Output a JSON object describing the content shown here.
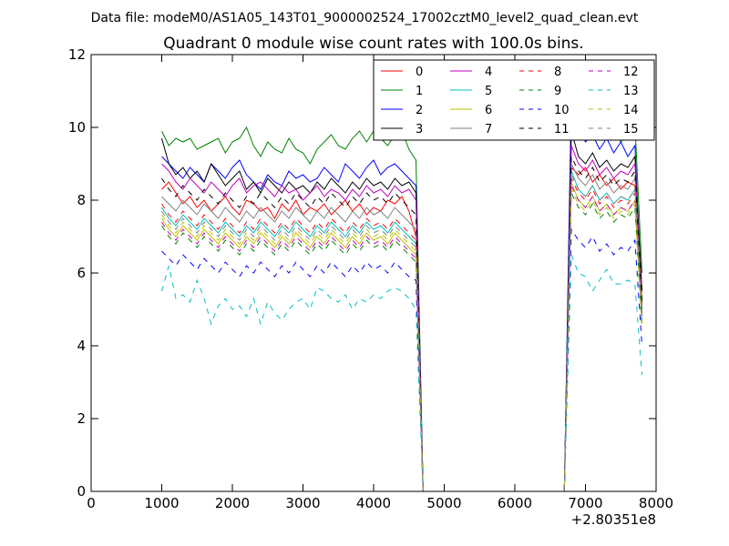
{
  "suptitle": "Data file: modeM0/AS1A05_143T01_9000002524_17002cztM0_level2_quad_clean.evt",
  "chart_data": {
    "type": "line",
    "title": "Quadrant 0 module wise count rates with 100.0s bins.",
    "xlabel": "",
    "ylabel": "",
    "x_offset_label": "+2.80351e8",
    "xlim": [
      0,
      8000
    ],
    "ylim": [
      0,
      12
    ],
    "xticks": [
      0,
      1000,
      2000,
      3000,
      4000,
      5000,
      6000,
      7000,
      8000
    ],
    "yticks": [
      0,
      2,
      4,
      6,
      8,
      10,
      12
    ],
    "grid": false,
    "legend_position": "top-right",
    "legend_columns": 4,
    "x": [
      1000,
      1100,
      1200,
      1300,
      1400,
      1500,
      1600,
      1700,
      1800,
      1900,
      2000,
      2100,
      2200,
      2300,
      2400,
      2500,
      2600,
      2700,
      2800,
      2900,
      3000,
      3100,
      3200,
      3300,
      3400,
      3500,
      3600,
      3700,
      3800,
      3900,
      4000,
      4100,
      4200,
      4300,
      4400,
      4500,
      4600,
      4700,
      4800,
      4900,
      5000,
      5100,
      5200,
      5300,
      5400,
      5500,
      5600,
      5700,
      5800,
      5900,
      6000,
      6100,
      6200,
      6300,
      6400,
      6500,
      6600,
      6700,
      6800,
      6900,
      7000,
      7100,
      7200,
      7300,
      7400,
      7500,
      7600,
      7700,
      7800
    ],
    "series": [
      {
        "name": "0",
        "color": "#ff0000",
        "dashed": false,
        "values": [
          8.3,
          8.5,
          8.2,
          7.9,
          8.1,
          7.8,
          8.0,
          7.7,
          7.9,
          8.1,
          7.8,
          7.6,
          8.0,
          7.9,
          7.7,
          7.8,
          7.5,
          7.9,
          7.7,
          8.0,
          7.6,
          7.8,
          7.7,
          7.9,
          7.6,
          7.8,
          8.0,
          7.7,
          7.9,
          7.6,
          7.8,
          7.7,
          8.0,
          7.9,
          8.1,
          7.7,
          7.0,
          0,
          0,
          0,
          0,
          0,
          0,
          0,
          0,
          0,
          0,
          0,
          0,
          0,
          0,
          0,
          0,
          0,
          0,
          0,
          0,
          0,
          8.9,
          8.7,
          8.9,
          8.5,
          8.7,
          8.4,
          8.6,
          8.3,
          8.5,
          8.4,
          5.5
        ]
      },
      {
        "name": "1",
        "color": "#008000",
        "dashed": false,
        "values": [
          9.9,
          9.5,
          9.7,
          9.6,
          9.7,
          9.4,
          9.5,
          9.6,
          9.7,
          9.3,
          9.6,
          9.7,
          10.0,
          9.5,
          9.2,
          9.6,
          9.4,
          9.3,
          9.7,
          9.4,
          9.3,
          9.0,
          9.4,
          9.6,
          9.8,
          9.5,
          9.4,
          9.7,
          9.9,
          9.6,
          9.9,
          9.7,
          9.5,
          9.8,
          9.9,
          9.4,
          9.1,
          0,
          0,
          0,
          0,
          0,
          0,
          0,
          0,
          0,
          0,
          0,
          0,
          0,
          0,
          0,
          0,
          0,
          0,
          0,
          0,
          0,
          10.3,
          10.0,
          10.2,
          9.8,
          10.1,
          9.7,
          9.9,
          9.6,
          9.8,
          10.1,
          6.0
        ]
      },
      {
        "name": "2",
        "color": "#0000ff",
        "dashed": false,
        "values": [
          9.2,
          9.0,
          8.8,
          8.6,
          8.9,
          8.7,
          8.5,
          9.0,
          8.8,
          8.6,
          8.9,
          9.1,
          8.7,
          8.5,
          8.3,
          8.7,
          8.5,
          8.4,
          8.8,
          8.6,
          8.7,
          8.5,
          8.6,
          8.9,
          8.7,
          8.5,
          9.0,
          8.8,
          8.6,
          8.9,
          9.1,
          8.7,
          8.9,
          9.0,
          8.8,
          8.6,
          8.4,
          0,
          0,
          0,
          0,
          0,
          0,
          0,
          0,
          0,
          0,
          0,
          0,
          0,
          0,
          0,
          0,
          0,
          0,
          0,
          0,
          0,
          10.9,
          10.0,
          9.6,
          9.8,
          9.4,
          9.7,
          9.3,
          9.6,
          9.2,
          9.5,
          5.0
        ]
      },
      {
        "name": "3",
        "color": "#000000",
        "dashed": false,
        "values": [
          9.7,
          9.0,
          8.7,
          8.9,
          8.6,
          8.8,
          8.5,
          9.0,
          8.7,
          8.4,
          8.6,
          8.8,
          8.3,
          8.5,
          8.2,
          8.6,
          8.4,
          8.2,
          8.5,
          8.3,
          8.4,
          8.2,
          8.5,
          8.3,
          8.6,
          8.4,
          8.2,
          8.5,
          8.3,
          8.6,
          8.4,
          8.5,
          8.3,
          8.6,
          8.4,
          8.5,
          8.2,
          0,
          0,
          0,
          0,
          0,
          0,
          0,
          0,
          0,
          0,
          0,
          0,
          0,
          0,
          0,
          0,
          0,
          0,
          0,
          0,
          0,
          9.9,
          9.2,
          9.0,
          9.3,
          8.9,
          9.1,
          8.8,
          9.0,
          8.9,
          9.2,
          5.5
        ]
      },
      {
        "name": "4",
        "color": "#bf00bf",
        "dashed": false,
        "values": [
          9.0,
          8.8,
          8.5,
          8.3,
          8.6,
          8.4,
          8.2,
          8.5,
          8.3,
          8.1,
          8.4,
          8.6,
          8.2,
          8.4,
          8.5,
          8.3,
          8.1,
          8.4,
          8.2,
          8.3,
          8.0,
          8.2,
          8.4,
          8.1,
          8.3,
          8.2,
          8.0,
          8.3,
          8.1,
          8.4,
          8.2,
          8.3,
          8.1,
          8.4,
          8.2,
          8.3,
          8.0,
          0,
          0,
          0,
          0,
          0,
          0,
          0,
          0,
          0,
          0,
          0,
          0,
          0,
          0,
          0,
          0,
          0,
          0,
          0,
          0,
          0,
          9.5,
          9.0,
          8.8,
          9.1,
          8.7,
          8.9,
          8.6,
          8.8,
          8.7,
          9.0,
          5.2
        ]
      },
      {
        "name": "5",
        "color": "#00bfbf",
        "dashed": false,
        "values": [
          7.8,
          7.5,
          7.3,
          7.6,
          7.4,
          7.2,
          7.5,
          7.3,
          7.1,
          7.4,
          7.2,
          7.0,
          7.3,
          7.1,
          7.4,
          7.2,
          7.0,
          7.3,
          7.1,
          7.4,
          7.2,
          7.0,
          7.3,
          7.1,
          7.4,
          7.2,
          7.0,
          7.3,
          7.1,
          7.4,
          7.2,
          7.3,
          7.1,
          7.4,
          7.2,
          7.0,
          6.8,
          0,
          0,
          0,
          0,
          0,
          0,
          0,
          0,
          0,
          0,
          0,
          0,
          0,
          0,
          0,
          0,
          0,
          0,
          0,
          0,
          0,
          8.8,
          8.3,
          8.1,
          8.4,
          8.0,
          8.2,
          7.9,
          8.1,
          8.0,
          8.3,
          4.8
        ]
      },
      {
        "name": "6",
        "color": "#bfbf00",
        "dashed": false,
        "values": [
          7.5,
          7.2,
          7.0,
          7.3,
          7.1,
          6.9,
          7.2,
          7.0,
          6.8,
          7.1,
          6.9,
          6.7,
          7.0,
          6.8,
          7.1,
          6.9,
          6.7,
          7.0,
          6.8,
          7.1,
          6.9,
          6.7,
          7.0,
          6.8,
          7.1,
          6.9,
          6.7,
          7.0,
          6.8,
          7.1,
          6.9,
          7.0,
          6.8,
          7.1,
          6.9,
          6.7,
          6.5,
          0,
          0,
          0,
          0,
          0,
          0,
          0,
          0,
          0,
          0,
          0,
          0,
          0,
          0,
          0,
          0,
          0,
          0,
          0,
          0,
          0,
          8.5,
          8.0,
          7.8,
          8.1,
          7.7,
          7.9,
          7.6,
          7.8,
          7.7,
          8.0,
          4.6
        ]
      },
      {
        "name": "7",
        "color": "#808080",
        "dashed": false,
        "values": [
          8.1,
          7.9,
          7.7,
          8.0,
          7.8,
          7.6,
          7.9,
          7.7,
          7.5,
          7.8,
          7.6,
          7.4,
          7.7,
          7.5,
          7.8,
          7.6,
          7.4,
          7.7,
          7.5,
          7.8,
          7.6,
          7.4,
          7.7,
          7.5,
          7.8,
          7.6,
          7.4,
          7.7,
          7.5,
          7.8,
          7.6,
          7.7,
          7.5,
          7.8,
          7.6,
          7.4,
          7.2,
          0,
          0,
          0,
          0,
          0,
          0,
          0,
          0,
          0,
          0,
          0,
          0,
          0,
          0,
          0,
          0,
          0,
          0,
          0,
          0,
          0,
          9.0,
          8.6,
          8.4,
          8.7,
          8.3,
          8.5,
          8.2,
          8.4,
          8.3,
          8.6,
          5.0
        ]
      },
      {
        "name": "8",
        "color": "#ff0000",
        "dashed": true,
        "values": [
          7.9,
          7.6,
          7.4,
          7.7,
          7.5,
          7.3,
          7.6,
          7.4,
          7.2,
          7.5,
          7.3,
          7.1,
          7.4,
          7.2,
          7.5,
          7.3,
          7.1,
          7.4,
          7.2,
          7.5,
          7.3,
          7.1,
          7.4,
          7.2,
          7.5,
          7.3,
          7.1,
          7.4,
          7.2,
          7.5,
          7.3,
          7.4,
          7.2,
          7.5,
          7.3,
          7.1,
          6.9,
          0,
          0,
          0,
          0,
          0,
          0,
          0,
          0,
          0,
          0,
          0,
          0,
          0,
          0,
          0,
          0,
          0,
          0,
          0,
          0,
          0,
          8.6,
          8.2,
          8.0,
          8.3,
          7.9,
          8.1,
          7.8,
          8.0,
          7.9,
          8.2,
          4.9
        ]
      },
      {
        "name": "9",
        "color": "#008000",
        "dashed": true,
        "values": [
          7.3,
          7.0,
          6.8,
          7.1,
          6.9,
          6.7,
          7.0,
          6.8,
          6.6,
          6.9,
          6.7,
          6.5,
          6.8,
          6.6,
          6.9,
          6.7,
          6.5,
          6.8,
          6.6,
          6.9,
          6.7,
          6.5,
          6.8,
          6.6,
          6.9,
          6.7,
          6.5,
          6.8,
          6.6,
          6.9,
          6.7,
          6.8,
          6.6,
          6.9,
          6.7,
          6.5,
          6.3,
          0,
          0,
          0,
          0,
          0,
          0,
          0,
          0,
          0,
          0,
          0,
          0,
          0,
          0,
          0,
          0,
          0,
          0,
          0,
          0,
          0,
          8.2,
          7.8,
          7.6,
          7.9,
          7.5,
          7.7,
          7.4,
          7.6,
          7.5,
          7.8,
          4.5
        ]
      },
      {
        "name": "10",
        "color": "#0000ff",
        "dashed": true,
        "values": [
          6.6,
          6.4,
          6.2,
          6.5,
          6.3,
          6.1,
          6.4,
          6.2,
          6.0,
          6.3,
          6.1,
          5.9,
          6.2,
          6.0,
          6.3,
          6.1,
          5.9,
          6.2,
          6.0,
          6.3,
          6.1,
          5.9,
          6.2,
          6.0,
          6.3,
          6.1,
          5.9,
          6.2,
          6.0,
          6.3,
          6.1,
          6.2,
          6.0,
          6.3,
          6.1,
          5.9,
          5.8,
          0,
          0,
          0,
          0,
          0,
          0,
          0,
          0,
          0,
          0,
          0,
          0,
          0,
          0,
          0,
          0,
          0,
          0,
          0,
          0,
          0,
          7.2,
          6.9,
          6.7,
          7.0,
          6.6,
          6.8,
          6.5,
          6.7,
          6.6,
          6.9,
          4.0
        ]
      },
      {
        "name": "11",
        "color": "#000000",
        "dashed": true,
        "values": [
          8.6,
          8.3,
          8.1,
          8.4,
          8.2,
          8.0,
          8.3,
          8.1,
          7.9,
          8.2,
          8.0,
          7.8,
          8.1,
          7.9,
          8.2,
          8.0,
          7.8,
          8.1,
          7.9,
          8.2,
          8.0,
          7.8,
          8.1,
          7.9,
          8.2,
          8.0,
          7.8,
          8.1,
          7.9,
          8.2,
          8.0,
          8.1,
          7.9,
          8.2,
          8.0,
          7.8,
          7.6,
          0,
          0,
          0,
          0,
          0,
          0,
          0,
          0,
          0,
          0,
          0,
          0,
          0,
          0,
          0,
          0,
          0,
          0,
          0,
          0,
          0,
          9.2,
          8.8,
          8.6,
          8.9,
          8.5,
          8.7,
          8.4,
          8.6,
          8.5,
          8.8,
          5.2
        ]
      },
      {
        "name": "12",
        "color": "#bf00bf",
        "dashed": true,
        "values": [
          7.4,
          7.1,
          6.9,
          7.2,
          7.0,
          6.8,
          7.1,
          6.9,
          6.7,
          7.0,
          6.8,
          6.6,
          6.9,
          6.7,
          7.0,
          6.8,
          6.6,
          6.9,
          6.7,
          7.0,
          6.8,
          6.6,
          6.9,
          6.7,
          7.0,
          6.8,
          6.6,
          6.9,
          6.7,
          7.0,
          6.8,
          6.9,
          6.7,
          7.0,
          6.8,
          6.6,
          6.4,
          0,
          0,
          0,
          0,
          0,
          0,
          0,
          0,
          0,
          0,
          0,
          0,
          0,
          0,
          0,
          0,
          0,
          0,
          0,
          0,
          0,
          8.4,
          8.0,
          7.8,
          8.1,
          7.7,
          7.9,
          7.6,
          7.8,
          7.7,
          8.0,
          4.7
        ]
      },
      {
        "name": "13",
        "color": "#00bfbf",
        "dashed": true,
        "values": [
          5.5,
          6.2,
          5.3,
          5.4,
          5.2,
          5.8,
          5.3,
          4.6,
          5.1,
          5.3,
          5.0,
          5.1,
          4.8,
          5.3,
          4.6,
          5.2,
          4.9,
          4.7,
          5.0,
          5.2,
          5.3,
          5.0,
          5.6,
          5.5,
          5.3,
          5.2,
          5.4,
          5.0,
          5.3,
          5.2,
          5.4,
          5.3,
          5.5,
          5.6,
          5.5,
          5.3,
          5.0,
          0,
          0,
          0,
          0,
          0,
          0,
          0,
          0,
          0,
          0,
          0,
          0,
          0,
          0,
          0,
          0,
          0,
          0,
          0,
          0,
          0,
          6.5,
          6.0,
          5.9,
          5.5,
          5.8,
          6.1,
          5.7,
          5.7,
          5.8,
          5.7,
          3.2
        ]
      },
      {
        "name": "14",
        "color": "#bfbf00",
        "dashed": true,
        "values": [
          7.6,
          7.3,
          7.1,
          7.4,
          7.2,
          7.0,
          7.3,
          7.1,
          6.9,
          7.2,
          7.0,
          6.8,
          7.1,
          6.9,
          7.2,
          7.0,
          6.8,
          7.1,
          6.9,
          7.2,
          7.0,
          6.8,
          7.1,
          6.9,
          7.2,
          7.0,
          6.8,
          7.1,
          6.9,
          7.2,
          7.0,
          7.1,
          6.9,
          7.2,
          7.0,
          6.8,
          6.6,
          0,
          0,
          0,
          0,
          0,
          0,
          0,
          0,
          0,
          0,
          0,
          0,
          0,
          0,
          0,
          0,
          0,
          0,
          0,
          0,
          0,
          8.3,
          7.9,
          7.7,
          8.0,
          7.6,
          7.8,
          7.5,
          7.7,
          7.6,
          7.9,
          4.6
        ]
      },
      {
        "name": "15",
        "color": "#808080",
        "dashed": true,
        "values": [
          7.7,
          7.4,
          7.2,
          7.5,
          7.3,
          7.1,
          7.4,
          7.2,
          7.0,
          7.3,
          7.1,
          6.9,
          7.2,
          7.0,
          7.3,
          7.1,
          6.9,
          7.2,
          7.0,
          7.3,
          7.1,
          6.9,
          7.2,
          7.0,
          7.3,
          7.1,
          6.9,
          7.2,
          7.0,
          7.3,
          7.1,
          7.2,
          7.0,
          7.3,
          7.1,
          6.9,
          6.7,
          0,
          0,
          0,
          0,
          0,
          0,
          0,
          0,
          0,
          0,
          0,
          0,
          0,
          0,
          0,
          0,
          0,
          0,
          0,
          0,
          0,
          8.7,
          8.3,
          8.1,
          8.4,
          8.0,
          8.2,
          7.9,
          8.1,
          8.0,
          8.3,
          4.8
        ]
      }
    ]
  }
}
